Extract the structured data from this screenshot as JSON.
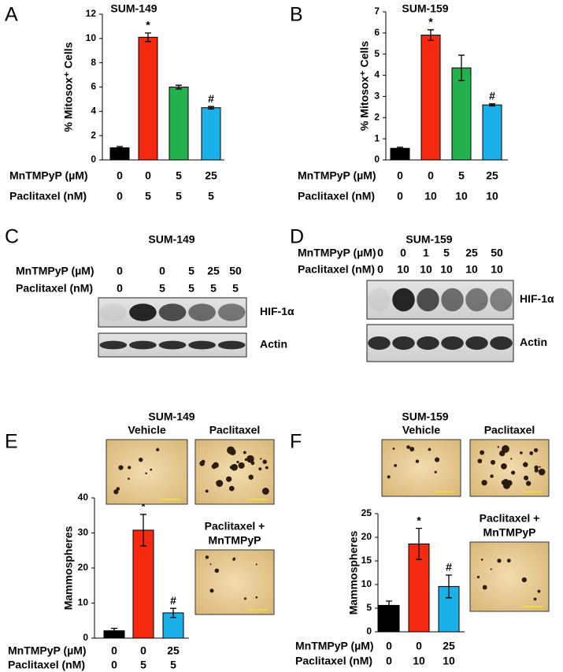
{
  "chart_data": [
    {
      "type": "bar",
      "panel": "A",
      "title": "SUM-149",
      "ylabel": "% Mitosox⁺ Cells",
      "values": [
        1.0,
        10.1,
        6.0,
        4.3
      ],
      "errors": [
        0.1,
        0.35,
        0.15,
        0.1
      ],
      "colors": [
        "#000000",
        "#f5290f",
        "#22b14c",
        "#1ab0ea"
      ],
      "annotations": [
        null,
        "*",
        null,
        "#"
      ],
      "ylim": [
        0,
        12
      ],
      "yticks": [
        0,
        2,
        4,
        6,
        8,
        10,
        12
      ],
      "conditions": [
        {
          "label": "MnTMPyP (µM)",
          "values": [
            0,
            0,
            5,
            25
          ]
        },
        {
          "label": "Paclitaxel (nM)",
          "values": [
            0,
            5,
            5,
            5
          ]
        }
      ]
    },
    {
      "type": "bar",
      "panel": "B",
      "title": "SUM-159",
      "ylabel": "% Mitosox⁺ Cells",
      "values": [
        0.55,
        5.9,
        4.35,
        2.6
      ],
      "errors": [
        0.05,
        0.25,
        0.6,
        0.05
      ],
      "colors": [
        "#000000",
        "#f5290f",
        "#22b14c",
        "#1ab0ea"
      ],
      "annotations": [
        null,
        "*",
        null,
        "#"
      ],
      "ylim": [
        0,
        7
      ],
      "yticks": [
        0,
        1,
        2,
        3,
        4,
        5,
        6,
        7
      ],
      "conditions": [
        {
          "label": "MnTMPyP (µM)",
          "values": [
            0,
            0,
            5,
            25
          ]
        },
        {
          "label": "Paclitaxel (nM)",
          "values": [
            0,
            10,
            10,
            10
          ]
        }
      ]
    },
    {
      "type": "bar",
      "panel": "E",
      "title": "SUM-149",
      "ylabel": "Mammospheres",
      "values": [
        2.1,
        30.8,
        7.2
      ],
      "errors": [
        0.7,
        4.5,
        1.3
      ],
      "colors": [
        "#000000",
        "#f5290f",
        "#1ab0ea"
      ],
      "annotations": [
        null,
        "*",
        "#"
      ],
      "ylim": [
        0,
        40
      ],
      "yticks": [
        0,
        10,
        20,
        30,
        40
      ],
      "conditions": [
        {
          "label": "MnTMPyP (µM)",
          "values": [
            0,
            0,
            25
          ]
        },
        {
          "label": "Paclitaxel (nM)",
          "values": [
            0,
            5,
            5
          ]
        }
      ],
      "images": [
        [
          "Vehicle"
        ],
        [
          "Paclitaxel"
        ],
        [
          "Paclitaxel +",
          "MnTMPyP"
        ]
      ]
    },
    {
      "type": "bar",
      "panel": "F",
      "title": "SUM-159",
      "ylabel": "Mammospheres",
      "values": [
        5.6,
        18.6,
        9.6
      ],
      "errors": [
        0.9,
        3.3,
        2.4
      ],
      "colors": [
        "#000000",
        "#f5290f",
        "#1ab0ea"
      ],
      "annotations": [
        null,
        "*",
        "#"
      ],
      "ylim": [
        0,
        25
      ],
      "yticks": [
        0,
        5,
        10,
        15,
        20,
        25
      ],
      "conditions": [
        {
          "label": "MnTMPyP (µM)",
          "values": [
            0,
            0,
            25
          ]
        },
        {
          "label": "Paclitaxel (nM)",
          "values": [
            0,
            10,
            10
          ]
        }
      ],
      "images": [
        [
          "Vehicle"
        ],
        [
          "Paclitaxel"
        ],
        [
          "Paclitaxel +",
          "MnTMPyP"
        ]
      ]
    }
  ],
  "blots": [
    {
      "panel": "C",
      "title": "SUM-149",
      "conditions": [
        {
          "label": "MnTMPyP (µM)",
          "values": [
            0,
            0,
            5,
            25,
            50
          ]
        },
        {
          "label": "Paclitaxel (nM)",
          "values": [
            0,
            5,
            5,
            5,
            5
          ]
        }
      ],
      "bands": [
        "HIF-1α",
        "Actin"
      ]
    },
    {
      "panel": "D",
      "title": "SUM-159",
      "conditions": [
        {
          "label": "MnTMPyP (µM)",
          "values": [
            0,
            0,
            1,
            5,
            25,
            50
          ]
        },
        {
          "label": "Paclitaxel (nM)",
          "values": [
            0,
            10,
            10,
            10,
            10,
            10
          ]
        }
      ],
      "bands": [
        "HIF-1α",
        "Actin"
      ]
    }
  ]
}
